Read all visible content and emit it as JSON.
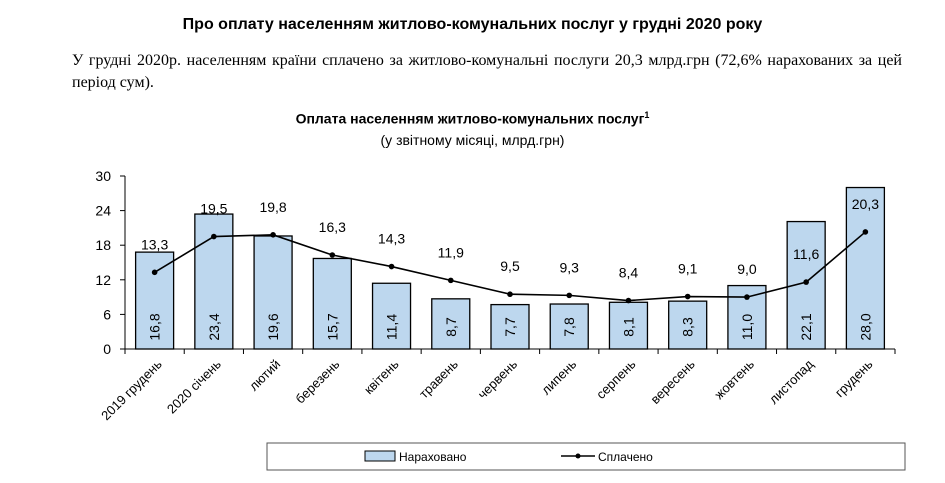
{
  "heading": "Про оплату населенням житлово-комунальних послуг у грудні 2020 року",
  "paragraph": "У грудні 2020р. населенням країни сплачено за житлово-комунальні послуги 20,3 млрд.грн (72,6% нарахованих за цей період сум).",
  "chart_data": {
    "type": "bar",
    "title": "Оплата населенням житлово-комунальних послуг",
    "title_footnote": "1",
    "subtitle": "(у звітному місяці, млрд.грн)",
    "categories": [
      "2019 грудень",
      "2020 січень",
      "лютий",
      "березень",
      "квітень",
      "травень",
      "червень",
      "липень",
      "серпень",
      "вересень",
      "жовтень",
      "листопад",
      "грудень"
    ],
    "ylim": [
      0,
      30
    ],
    "yticks": [
      "0",
      "6",
      "12",
      "18",
      "24",
      "30"
    ],
    "grid": false,
    "legend_position": "bottom",
    "series": [
      {
        "name": "Нараховано",
        "type": "bar",
        "color": "#bdd7ee",
        "values": [
          16.8,
          23.4,
          19.6,
          15.7,
          11.4,
          8.7,
          7.7,
          7.8,
          8.1,
          8.3,
          11.0,
          22.1,
          28.0
        ],
        "labels": [
          "16,8",
          "23,4",
          "19,6",
          "15,7",
          "11,4",
          "8,7",
          "7,7",
          "7,8",
          "8,1",
          "8,3",
          "11,0",
          "22,1",
          "28,0"
        ]
      },
      {
        "name": "Сплачено",
        "type": "line",
        "color": "#000000",
        "values": [
          13.3,
          19.5,
          19.8,
          16.3,
          14.3,
          11.9,
          9.5,
          9.3,
          8.4,
          9.1,
          9.0,
          11.6,
          20.3
        ],
        "labels": [
          "13,3",
          "19,5",
          "19,8",
          "16,3",
          "14,3",
          "11,9",
          "9,5",
          "9,3",
          "8,4",
          "9,1",
          "9,0",
          "11,6",
          "20,3"
        ]
      }
    ]
  }
}
